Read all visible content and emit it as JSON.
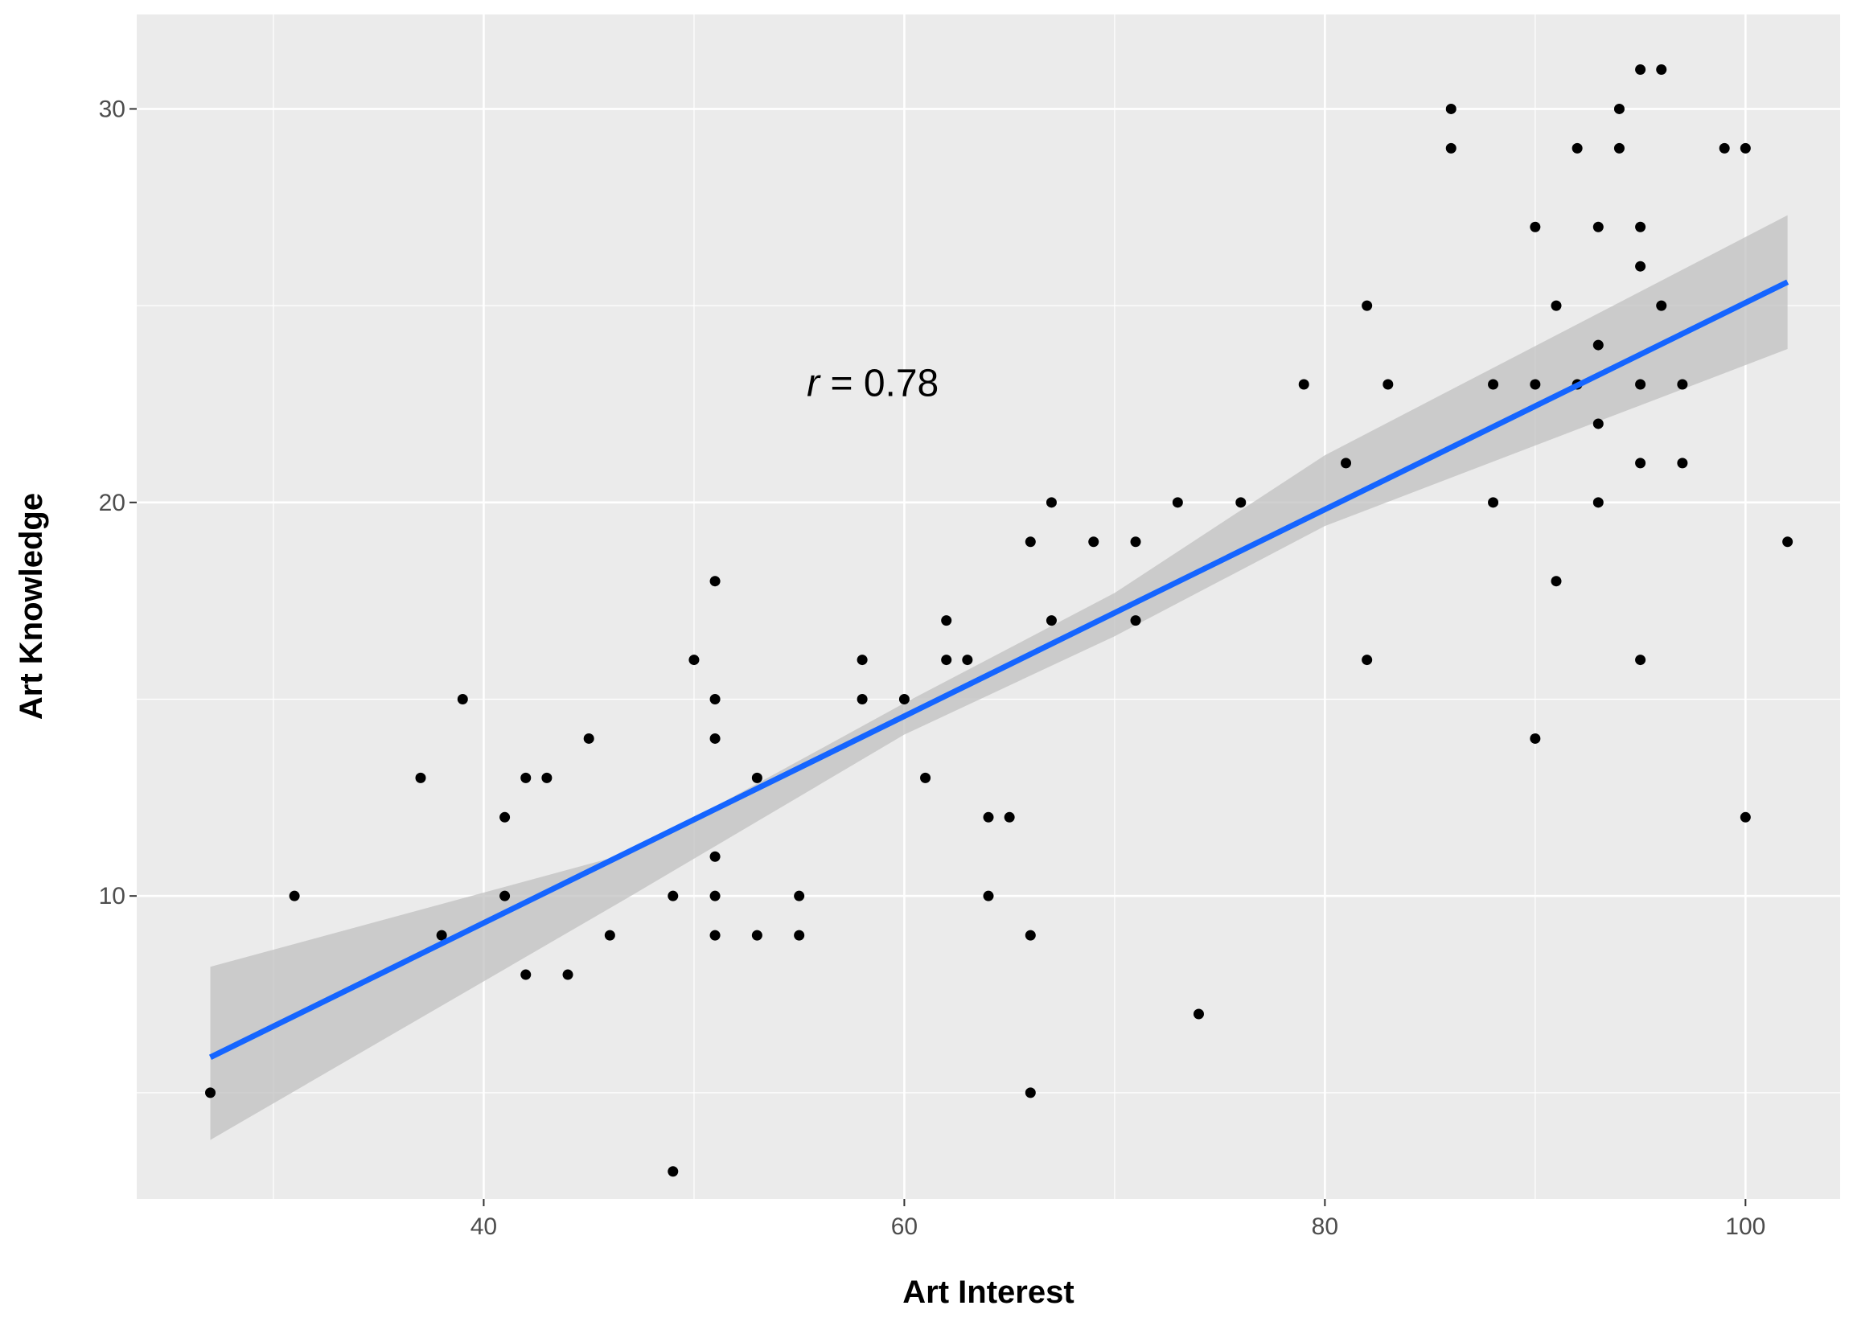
{
  "chart_data": {
    "type": "scatter",
    "title": "",
    "xlabel": "Art Interest",
    "ylabel": "Art Knowledge",
    "xlim": [
      23.5,
      104.5
    ],
    "ylim": [
      2.3,
      32.4
    ],
    "x_ticks": [
      40,
      60,
      80,
      100
    ],
    "x_tick_labels": [
      "40",
      "60",
      "80",
      "100"
    ],
    "y_ticks": [
      10,
      20,
      30
    ],
    "y_tick_labels": [
      "10",
      "20",
      "30"
    ],
    "x_minor_ticks": [
      30,
      50,
      70,
      90
    ],
    "y_minor_ticks": [
      5,
      15,
      25
    ],
    "grid": true,
    "annotation": {
      "prefix": "r",
      "text": " = 0.78",
      "x": 58.5,
      "y": 22.7
    },
    "regression": {
      "x_start": 27,
      "y_start": 5.9,
      "x_end": 102,
      "y_end": 25.6,
      "ci_lower": [
        3.8,
        10.0,
        14.1,
        16.6,
        19.4,
        23.9
      ],
      "ci_upper": [
        8.2,
        11.1,
        14.9,
        17.7,
        21.2,
        27.3
      ],
      "ci_x": [
        27,
        47,
        60,
        70,
        80,
        102
      ]
    },
    "colors": {
      "panel": "#ebebeb",
      "grid": "#ffffff",
      "point": "#000000",
      "line": "#1565ff",
      "ribbon": "#c0c0c0"
    },
    "points": [
      {
        "x": 27,
        "y": 5
      },
      {
        "x": 31,
        "y": 10
      },
      {
        "x": 37,
        "y": 13
      },
      {
        "x": 38,
        "y": 9
      },
      {
        "x": 39,
        "y": 15
      },
      {
        "x": 41,
        "y": 12
      },
      {
        "x": 41,
        "y": 10
      },
      {
        "x": 42,
        "y": 13
      },
      {
        "x": 42,
        "y": 8
      },
      {
        "x": 43,
        "y": 13
      },
      {
        "x": 44,
        "y": 8
      },
      {
        "x": 45,
        "y": 14
      },
      {
        "x": 46,
        "y": 9
      },
      {
        "x": 49,
        "y": 10
      },
      {
        "x": 49,
        "y": 3
      },
      {
        "x": 50,
        "y": 16
      },
      {
        "x": 51,
        "y": 18
      },
      {
        "x": 51,
        "y": 15
      },
      {
        "x": 51,
        "y": 14
      },
      {
        "x": 51,
        "y": 11
      },
      {
        "x": 51,
        "y": 10
      },
      {
        "x": 51,
        "y": 9
      },
      {
        "x": 53,
        "y": 13
      },
      {
        "x": 53,
        "y": 9
      },
      {
        "x": 55,
        "y": 10
      },
      {
        "x": 55,
        "y": 9
      },
      {
        "x": 58,
        "y": 16
      },
      {
        "x": 58,
        "y": 15
      },
      {
        "x": 60,
        "y": 15
      },
      {
        "x": 61,
        "y": 13
      },
      {
        "x": 62,
        "y": 17
      },
      {
        "x": 62,
        "y": 16
      },
      {
        "x": 63,
        "y": 16
      },
      {
        "x": 64,
        "y": 12
      },
      {
        "x": 64,
        "y": 10
      },
      {
        "x": 65,
        "y": 12
      },
      {
        "x": 66,
        "y": 19
      },
      {
        "x": 66,
        "y": 9
      },
      {
        "x": 66,
        "y": 5
      },
      {
        "x": 67,
        "y": 20
      },
      {
        "x": 67,
        "y": 17
      },
      {
        "x": 69,
        "y": 19
      },
      {
        "x": 71,
        "y": 19
      },
      {
        "x": 71,
        "y": 17
      },
      {
        "x": 73,
        "y": 20
      },
      {
        "x": 74,
        "y": 7
      },
      {
        "x": 76,
        "y": 20
      },
      {
        "x": 79,
        "y": 23
      },
      {
        "x": 81,
        "y": 21
      },
      {
        "x": 82,
        "y": 25
      },
      {
        "x": 82,
        "y": 16
      },
      {
        "x": 83,
        "y": 23
      },
      {
        "x": 86,
        "y": 30
      },
      {
        "x": 86,
        "y": 29
      },
      {
        "x": 88,
        "y": 23
      },
      {
        "x": 88,
        "y": 20
      },
      {
        "x": 90,
        "y": 27
      },
      {
        "x": 90,
        "y": 23
      },
      {
        "x": 90,
        "y": 14
      },
      {
        "x": 91,
        "y": 25
      },
      {
        "x": 91,
        "y": 18
      },
      {
        "x": 92,
        "y": 29
      },
      {
        "x": 92,
        "y": 23
      },
      {
        "x": 93,
        "y": 27
      },
      {
        "x": 93,
        "y": 24
      },
      {
        "x": 93,
        "y": 22
      },
      {
        "x": 93,
        "y": 20
      },
      {
        "x": 94,
        "y": 30
      },
      {
        "x": 94,
        "y": 29
      },
      {
        "x": 95,
        "y": 31
      },
      {
        "x": 95,
        "y": 27
      },
      {
        "x": 95,
        "y": 26
      },
      {
        "x": 95,
        "y": 23
      },
      {
        "x": 95,
        "y": 21
      },
      {
        "x": 95,
        "y": 16
      },
      {
        "x": 96,
        "y": 31
      },
      {
        "x": 96,
        "y": 25
      },
      {
        "x": 97,
        "y": 23
      },
      {
        "x": 97,
        "y": 21
      },
      {
        "x": 99,
        "y": 29
      },
      {
        "x": 100,
        "y": 29
      },
      {
        "x": 100,
        "y": 12
      },
      {
        "x": 102,
        "y": 19
      }
    ]
  }
}
